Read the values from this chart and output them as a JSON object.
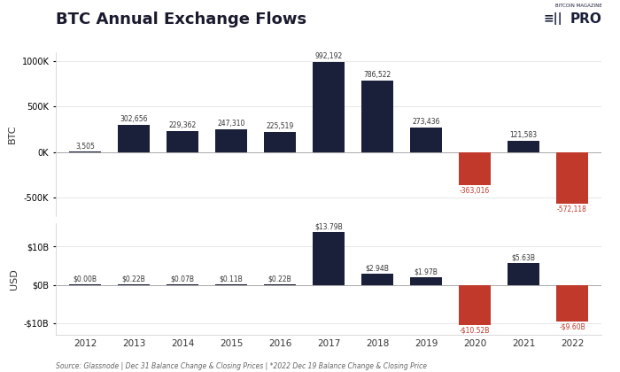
{
  "title": "BTC Annual Exchange Flows",
  "years": [
    "2012",
    "2013",
    "2014",
    "2015",
    "2016",
    "2017",
    "2018",
    "2019",
    "2020",
    "2021",
    "2022"
  ],
  "btc_values": [
    3505,
    302656,
    229362,
    247310,
    225519,
    992192,
    786522,
    273436,
    -363016,
    121583,
    -572118
  ],
  "usd_values": [
    0.008,
    0.22,
    0.07,
    0.11,
    0.22,
    13.79,
    2.94,
    1.97,
    -10.52,
    5.63,
    -9.6
  ],
  "btc_labels": [
    "3,505",
    "302,656",
    "229,362",
    "247,310",
    "225,519",
    "992,192",
    "786,522",
    "273,436",
    "-363,016",
    "121,583",
    "-572,118"
  ],
  "usd_labels": [
    "$0.00B",
    "$0.22B",
    "$0.07B",
    "$0.11B",
    "$0.22B",
    "$13.79B",
    "$2.94B",
    "$1.97B",
    "-$10.52B",
    "$5.63B",
    "-$9.60B"
  ],
  "positive_color": "#1a1f3a",
  "negative_color": "#c0392b",
  "background_color": "#ffffff",
  "footer": "Source: Glassnode | Dec 31 Balance Change & Closing Prices | *2022 Dec 19 Balance Change & Closing Price",
  "btc_ylim": [
    -700000,
    1100000
  ],
  "usd_ylim": [
    -13,
    16
  ],
  "btc_yticks": [
    -500000,
    0,
    500000,
    1000000
  ],
  "btc_ytick_labels": [
    "-500K",
    "0K",
    "500K",
    "1000K"
  ],
  "usd_yticks": [
    -10,
    0,
    10
  ],
  "usd_ytick_labels": [
    "-$10B",
    "$0B",
    "$10B"
  ]
}
